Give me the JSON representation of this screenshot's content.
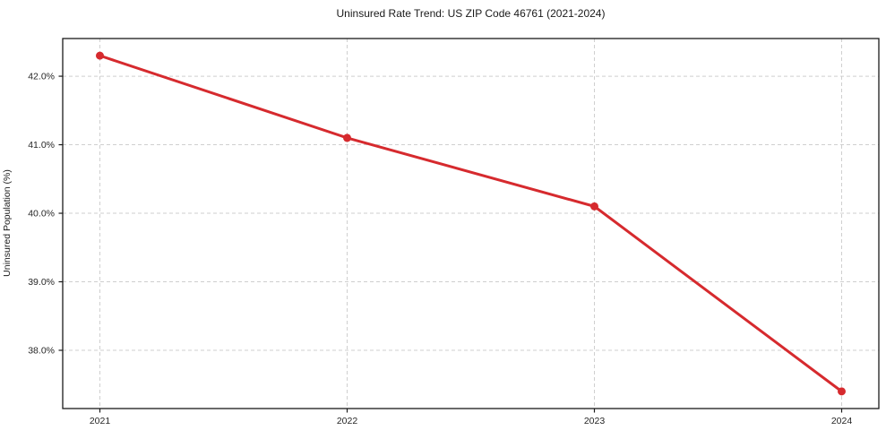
{
  "chart_data": {
    "type": "line",
    "title": "Uninsured Rate Trend: US ZIP Code 46761 (2021-2024)",
    "xlabel": "",
    "ylabel": "Uninsured Population (%)",
    "categories": [
      "2021",
      "2022",
      "2023",
      "2024"
    ],
    "values": [
      42.3,
      41.1,
      40.1,
      37.4
    ],
    "series_name": "uninsured-rate",
    "ylim": [
      37.15,
      42.55
    ],
    "yticks": [
      38.0,
      39.0,
      40.0,
      41.0,
      42.0
    ],
    "ytick_labels": [
      "38.0%",
      "39.0%",
      "40.0%",
      "41.0%",
      "42.0%"
    ],
    "grid": "on",
    "grid_style": "dashed",
    "legend": "none",
    "line_color": "#d62a2e",
    "marker_color": "#d62a2e",
    "grid_color": "#cfcfcf",
    "axis_color": "#1a1a1a",
    "tick_label_color": "#262626",
    "background_color": "#ffffff"
  }
}
